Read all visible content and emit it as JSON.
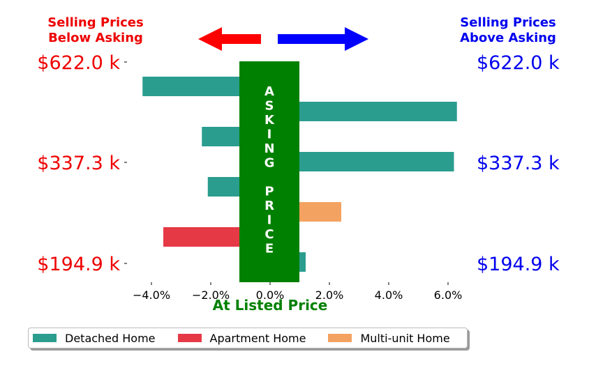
{
  "header": {
    "left_title_line1": "Selling Prices",
    "left_title_line2": "Below Asking",
    "right_title_line1": "Selling Prices",
    "right_title_line2": "Above Asking",
    "left_color": "#ee0000",
    "right_color": "#0000ee",
    "left_arrow_color": "#ff0000",
    "right_arrow_color": "#0000ff"
  },
  "center_band": {
    "color": "#008000",
    "letters": [
      "A",
      "S",
      "K",
      "I",
      "N",
      "G",
      "",
      "P",
      "R",
      "I",
      "C",
      "E"
    ]
  },
  "x_axis_title": "At Listed Price",
  "x_axis_title_color": "#008000",
  "chart_data": {
    "type": "bar",
    "orientation": "horizontal",
    "xlim": [
      -5.0,
      6.5
    ],
    "x_ticks": [
      -4.0,
      -2.0,
      0.0,
      2.0,
      4.0,
      6.0
    ],
    "x_tick_labels": [
      "−4.0%",
      "−2.0%",
      "0.0%",
      "2.0%",
      "4.0%",
      "6.0%"
    ],
    "y_tick_labels_left": [
      "$622.0 k",
      "$337.3 k",
      "$194.9 k"
    ],
    "y_tick_labels_right": [
      "$622.0 k",
      "$337.3 k",
      "$194.9 k"
    ],
    "series": [
      {
        "name": "Detached Home",
        "color": "#2a9d8f"
      },
      {
        "name": "Apartment Home",
        "color": "#e63946"
      },
      {
        "name": "Multi-unit Home",
        "color": "#f4a261"
      }
    ],
    "bars": [
      {
        "series": 0,
        "value": -4.3
      },
      {
        "series": 0,
        "value": 6.3
      },
      {
        "series": 0,
        "value": -2.3
      },
      {
        "series": 0,
        "value": 6.2
      },
      {
        "series": 0,
        "value": -2.1
      },
      {
        "series": 2,
        "value": 2.4
      },
      {
        "series": 1,
        "value": -3.6
      },
      {
        "series": 0,
        "value": 1.2
      }
    ],
    "legend_position": "bottom"
  },
  "legend": {
    "items": [
      {
        "label": "Detached Home",
        "color": "#2a9d8f"
      },
      {
        "label": "Apartment Home",
        "color": "#e63946"
      },
      {
        "label": "Multi-unit Home",
        "color": "#f4a261"
      }
    ]
  }
}
